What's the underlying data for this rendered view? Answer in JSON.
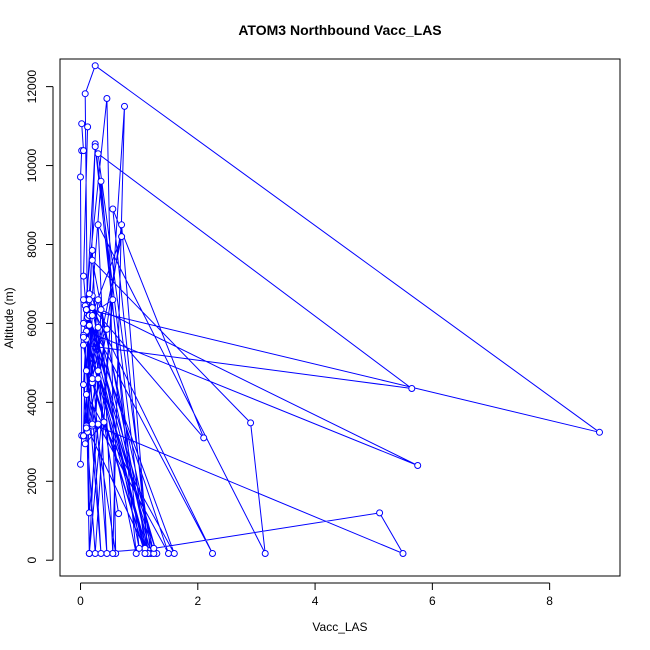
{
  "chart_data": {
    "type": "scatter",
    "title": "ATOM3 Northbound Vacc_LAS",
    "xlabel": "Vacc_LAS",
    "ylabel": "Altitude (m)",
    "xlim": [
      -0.35,
      9.2
    ],
    "ylim": [
      -400,
      12700
    ],
    "xticks": [
      0,
      2,
      4,
      6,
      8
    ],
    "yticks": [
      0,
      2000,
      4000,
      6000,
      8000,
      10000,
      12000
    ],
    "grid": false,
    "point_style": "open-circle-connected",
    "series_color": "#0000ff",
    "series": [
      {
        "points": [
          [
            0.0,
            2430
          ],
          [
            0.02,
            3160
          ],
          [
            0.0,
            9710
          ],
          [
            0.02,
            10380
          ],
          [
            0.05,
            10380
          ],
          [
            0.02,
            11060
          ],
          [
            0.12,
            10980
          ],
          [
            0.05,
            7200
          ],
          [
            0.2,
            4500
          ],
          [
            1.1,
            170
          ],
          [
            1.15,
            250
          ],
          [
            0.2,
            6700
          ],
          [
            0.35,
            9600
          ],
          [
            0.95,
            170
          ],
          [
            0.08,
            6450
          ],
          [
            1.3,
            170
          ],
          [
            0.1,
            5600
          ],
          [
            1.1,
            300
          ],
          [
            0.05,
            6600
          ],
          [
            1.5,
            170
          ],
          [
            0.3,
            3450
          ],
          [
            0.15,
            1200
          ],
          [
            0.08,
            11820
          ],
          [
            0.25,
            12530
          ],
          [
            8.85,
            3240
          ],
          [
            0.12,
            6350
          ],
          [
            1.2,
            170
          ],
          [
            0.3,
            10300
          ],
          [
            5.65,
            4350
          ],
          [
            0.05,
            5450
          ],
          [
            0.6,
            170
          ],
          [
            0.45,
            11700
          ],
          [
            0.05,
            6000
          ],
          [
            1.15,
            170
          ],
          [
            0.55,
            8900
          ],
          [
            2.1,
            3100
          ],
          [
            0.2,
            6400
          ],
          [
            2.25,
            170
          ],
          [
            0.12,
            6150
          ],
          [
            1.6,
            170
          ],
          [
            0.1,
            4200
          ],
          [
            0.15,
            170
          ],
          [
            0.35,
            6350
          ],
          [
            5.75,
            2400
          ],
          [
            0.1,
            5800
          ],
          [
            0.05,
            4450
          ],
          [
            0.25,
            170
          ],
          [
            0.75,
            11500
          ],
          [
            0.55,
            170
          ],
          [
            0.3,
            8500
          ],
          [
            3.15,
            170
          ],
          [
            2.9,
            3480
          ],
          [
            0.2,
            7600
          ],
          [
            1.15,
            170
          ],
          [
            0.7,
            8500
          ],
          [
            0.2,
            3400
          ],
          [
            0.05,
            3150
          ],
          [
            0.3,
            5900
          ],
          [
            0.45,
            170
          ],
          [
            0.15,
            5950
          ],
          [
            0.25,
            10550
          ],
          [
            1.1,
            300
          ],
          [
            0.1,
            3400
          ],
          [
            0.3,
            6600
          ],
          [
            1.25,
            170
          ],
          [
            0.3,
            4800
          ],
          [
            0.08,
            2950
          ],
          [
            0.4,
            3500
          ],
          [
            0.65,
            1180
          ],
          [
            0.1,
            6350
          ],
          [
            0.35,
            170
          ],
          [
            0.05,
            5700
          ],
          [
            0.2,
            3450
          ],
          [
            5.5,
            170
          ],
          [
            5.1,
            1200
          ],
          [
            1.25,
            300
          ],
          [
            0.15,
            170
          ],
          [
            0.55,
            6600
          ],
          [
            0.15,
            6200
          ],
          [
            0.05,
            5650
          ],
          [
            0.7,
            8200
          ],
          [
            0.2,
            4600
          ],
          [
            1.1,
            170
          ],
          [
            0.1,
            6350
          ],
          [
            0.25,
            10480
          ],
          [
            1.0,
            300
          ],
          [
            0.15,
            6750
          ],
          [
            0.2,
            7850
          ],
          [
            0.3,
            4600
          ],
          [
            0.45,
            5850
          ],
          [
            0.1,
            4800
          ],
          [
            0.15,
            6600
          ],
          [
            0.12,
            3250
          ],
          [
            0.1,
            3350
          ],
          [
            0.2,
            6200
          ],
          [
            0.05,
            3150
          ],
          [
            0.1,
            6350
          ]
        ]
      }
    ]
  }
}
